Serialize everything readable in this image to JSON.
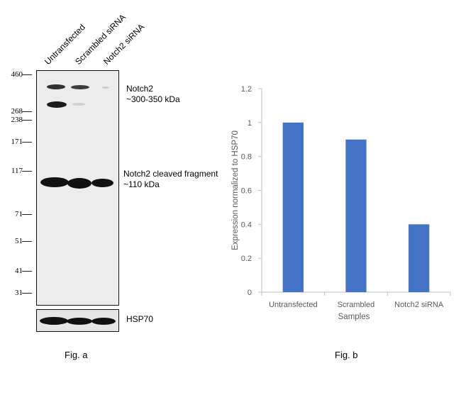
{
  "blot": {
    "lanes": [
      "Untransfected",
      "Scrambled siRNA",
      "Notch2 siRNA"
    ],
    "markers": [
      "460",
      "268",
      "238",
      "171",
      "117",
      "71",
      "51",
      "41",
      "31"
    ],
    "annotations": {
      "notch2_full": [
        "Notch2",
        "~300-350 kDa"
      ],
      "notch2_cleaved": [
        "Notch2 cleaved fragment",
        "~110 kDa"
      ],
      "loading_control": "HSP70"
    },
    "caption": "Fig. a"
  },
  "chart_data": {
    "type": "bar",
    "categories": [
      "Untransfected",
      "Scrambled",
      "Notch2 siRNA"
    ],
    "values": [
      1.0,
      0.9,
      0.4
    ],
    "xlabel": "Samples",
    "ylabel": "Expression normalized to HSP70",
    "ylim": [
      0,
      1.2
    ],
    "yticks": [
      0,
      0.2,
      0.4,
      0.6,
      0.8,
      1,
      1.2
    ],
    "bar_color": "#4472c4",
    "grid": false,
    "legend": "none",
    "caption": "Fig. b"
  }
}
